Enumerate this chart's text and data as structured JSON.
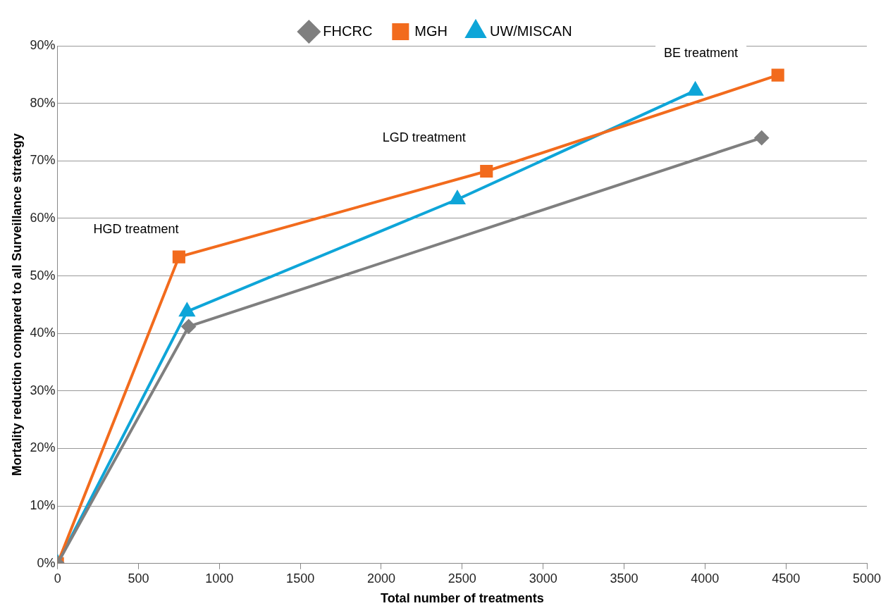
{
  "chart_data": {
    "type": "line",
    "xlabel": "Total number of treatments",
    "ylabel": "Mortality reduction compared to all Surveillance strategy",
    "xlim": [
      0,
      5000
    ],
    "xticks": [
      0,
      500,
      1000,
      1500,
      2000,
      2500,
      3000,
      3500,
      4000,
      4500,
      5000
    ],
    "ylim": [
      0,
      90
    ],
    "yticks": [
      {
        "value": 0,
        "label": "0%"
      },
      {
        "value": 10,
        "label": "10%"
      },
      {
        "value": 20,
        "label": "20%"
      },
      {
        "value": 30,
        "label": "30%"
      },
      {
        "value": 40,
        "label": "40%"
      },
      {
        "value": 50,
        "label": "50%"
      },
      {
        "value": 60,
        "label": "60%"
      },
      {
        "value": 70,
        "label": "70%"
      },
      {
        "value": 80,
        "label": "80%"
      },
      {
        "value": 90,
        "label": "90%"
      }
    ],
    "grid": "y",
    "legend": "top",
    "series": [
      {
        "name": "FHCRC",
        "color": "#7f7f7f",
        "marker": "diamond",
        "x": [
          0,
          810,
          4350
        ],
        "values": [
          0,
          41.2,
          74
        ]
      },
      {
        "name": "MGH",
        "color": "#f26b1d",
        "marker": "square",
        "x": [
          0,
          750,
          2650,
          4450
        ],
        "values": [
          0,
          53.3,
          68.2,
          84.9
        ]
      },
      {
        "name": "UW/MISCAN",
        "color": "#0ea5d8",
        "marker": "triangle",
        "x": [
          0,
          800,
          2470,
          3940
        ],
        "values": [
          0,
          43.8,
          63.3,
          82.2
        ]
      }
    ],
    "annotations": [
      "HGD treatment",
      "LGD treatment",
      "BE treatment"
    ]
  }
}
